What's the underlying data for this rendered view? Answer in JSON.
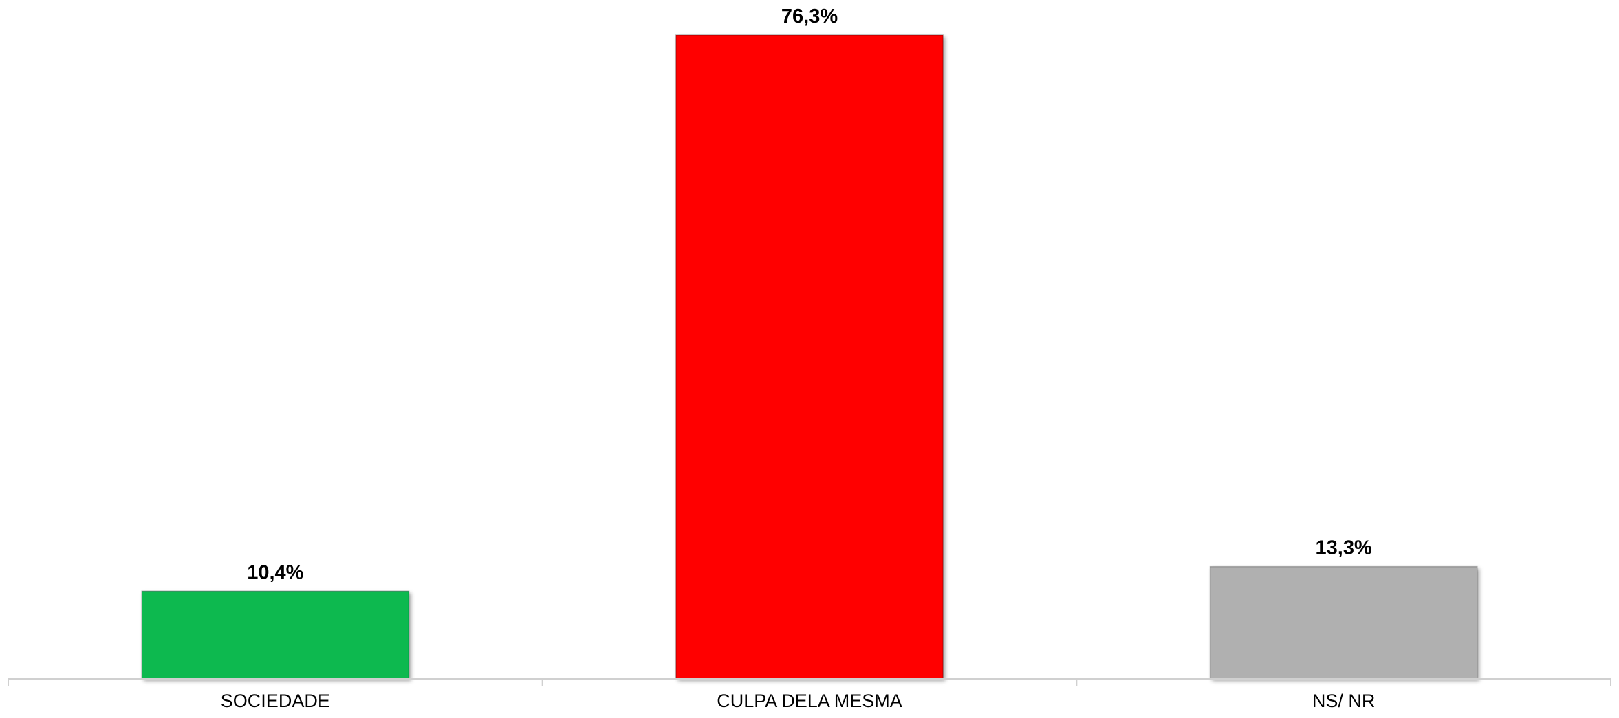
{
  "chart_data": {
    "type": "bar",
    "categories": [
      "SOCIEDADE",
      "CULPA DELA MESMA",
      "NS/ NR"
    ],
    "values": [
      10.4,
      76.3,
      13.3
    ],
    "value_labels": [
      "10,4%",
      "76,3%",
      "13,3%"
    ],
    "colors": [
      "#07b94f",
      "#ff0606",
      "#b0b0b0"
    ],
    "title": "",
    "xlabel": "",
    "ylabel": "",
    "ylim": [
      0,
      76.3
    ],
    "grid": false,
    "legend": "none"
  }
}
